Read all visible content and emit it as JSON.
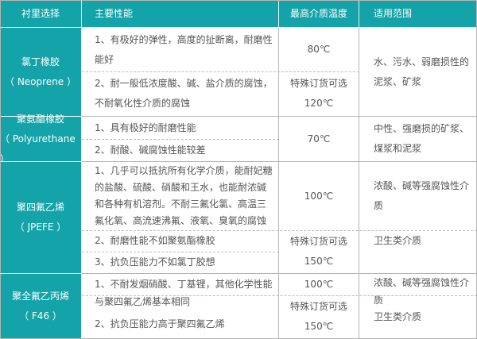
{
  "header": {
    "col1": "衬里选择",
    "col2": "主要性能",
    "col3": "最高介质温度",
    "col4": "适用范围"
  },
  "rows": [
    {
      "name": [
        "氯丁橡胶",
        "（ Neoprene ）"
      ],
      "props": [
        [
          "1、有极好的弹性，高度的扯断离，耐磨性",
          "能好"
        ],
        [
          "2、耐一般低浓度酸、碱、盐介质的腐蚀，",
          "不耐氧化性介质的腐蚀"
        ]
      ],
      "temp": [
        "80℃",
        "特殊订货可选",
        "120℃"
      ],
      "use": [
        "水、污水、弱磨损性的",
        "泥浆、矿浆"
      ]
    },
    {
      "name": [
        "聚氨酯橡胶",
        "（ Polyurethane ）"
      ],
      "props": [
        [
          "1、具有极好的耐磨性能"
        ],
        [
          "2、耐酸、碱腐蚀性能较差"
        ]
      ],
      "temp": [
        "70℃"
      ],
      "use": [
        "中性、强磨损的矿浆、",
        "煤浆和泥浆"
      ]
    },
    {
      "name": [
        "聚四氟乙烯",
        "（ JPEFE ）"
      ],
      "props": [
        [
          "1、几乎可以抵抗所有化学介质，能耐妃糖",
          "的盐酸、硫酸、硝酸和王水，也能耐浓碱",
          "和各种有机溶剂。不耐三氟化氯、高温三",
          "氟化氧、高流速沸氟、液氧、臭氧的腐蚀"
        ],
        [
          "2、耐磨性能不如聚氨酯橡胶"
        ],
        [
          "3、抗负压能力不如氯丁胶想"
        ]
      ],
      "temp": [
        "100℃",
        "特殊订货可选",
        "150℃"
      ],
      "use": [
        "浓酸、碱等强腐蚀性介",
        "质",
        "卫生类介质"
      ]
    },
    {
      "name": [
        "聚全氟乙丙烯",
        "（ F46 ）"
      ],
      "props": [
        [
          "1、不耐发烟硝酸、丁基锂，其他化学性能",
          "与聚四氟乙烯基本相同"
        ],
        [
          "2、抗负压能力高于聚四氟乙烯"
        ]
      ],
      "temp": [
        "100℃",
        "特殊订货可选",
        "150℃"
      ],
      "use": [
        "浓酸、碱等强腐蚀性介",
        "质",
        "卫生类介质"
      ]
    }
  ],
  "colors": {
    "header_bg": "#14a3a8",
    "header_text": "#ffffff",
    "border": "#b5b5b5"
  }
}
